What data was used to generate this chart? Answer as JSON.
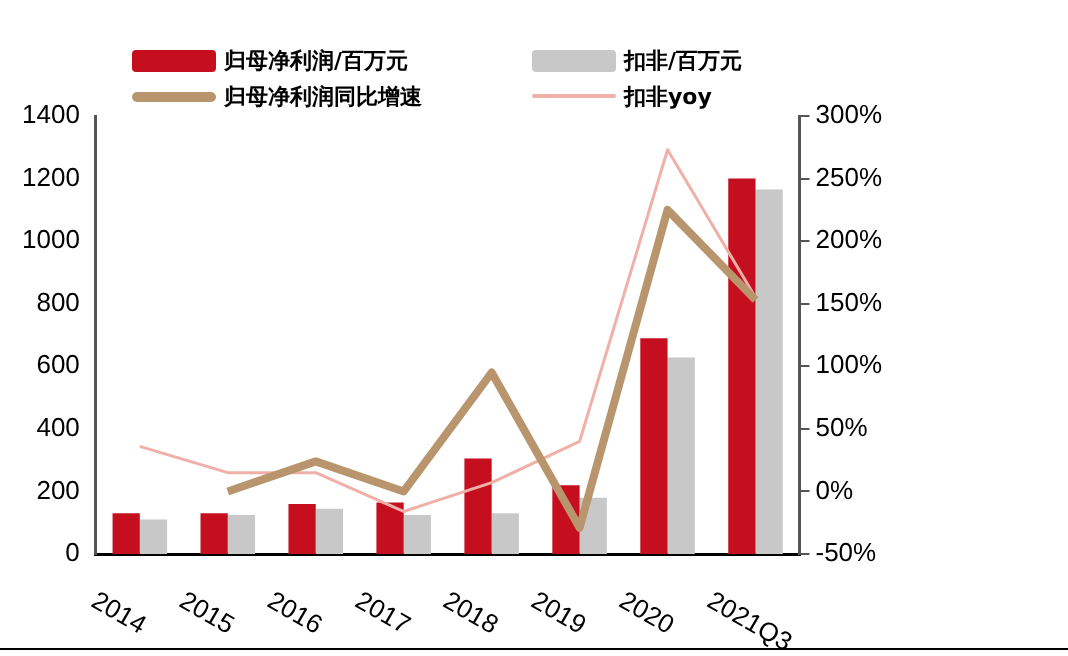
{
  "chart_data": {
    "type": "bar",
    "categories": [
      "2014",
      "2015",
      "2016",
      "2017",
      "2018",
      "2019",
      "2020",
      "2021Q3"
    ],
    "series": [
      {
        "name": "归母净利润/百万元",
        "color": "#c50f1f",
        "values": [
          130,
          130,
          160,
          165,
          305,
          220,
          690,
          1200
        ]
      },
      {
        "name": "扣非/百万元",
        "color": "#c8c8c8",
        "values": [
          110,
          125,
          145,
          125,
          130,
          180,
          628,
          1165
        ]
      },
      {
        "name": "归母净利润同比增速",
        "type": "line",
        "axis": "y2",
        "color": "#b8956c",
        "values": [
          null,
          0,
          24,
          0,
          95,
          -29,
          225,
          153
        ]
      },
      {
        "name": "扣非yoy",
        "type": "line",
        "axis": "y2",
        "color": "#f0b0a8",
        "values": [
          36,
          15,
          15,
          -16,
          7,
          40,
          273,
          155
        ]
      }
    ],
    "ylim": [
      0,
      1400
    ],
    "yticks": [
      0,
      200,
      400,
      600,
      800,
      1000,
      1200,
      1400
    ],
    "y2lim": [
      -50,
      300
    ],
    "y2ticks": [
      {
        "value": -50,
        "label": "-50%"
      },
      {
        "value": 0,
        "label": "0%"
      },
      {
        "value": 50,
        "label": "50%"
      },
      {
        "value": 100,
        "label": "100%"
      },
      {
        "value": 150,
        "label": "150%"
      },
      {
        "value": 200,
        "label": "200%"
      },
      {
        "value": 250,
        "label": "250%"
      },
      {
        "value": 300,
        "label": "300%"
      }
    ],
    "grid": false,
    "legend": "top",
    "marker": "none"
  }
}
